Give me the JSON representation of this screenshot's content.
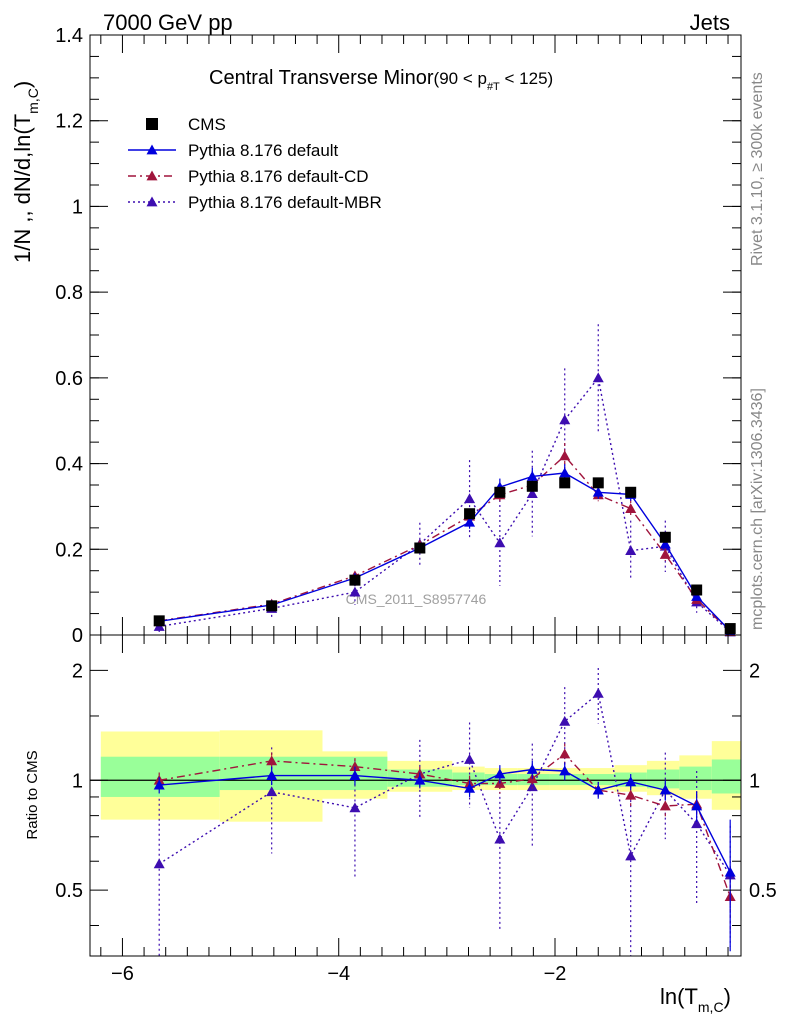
{
  "header": {
    "energy_label": "7000 GeV pp",
    "process_label": "Jets"
  },
  "side_labels": {
    "rivet": "Rivet 3.1.10, ≥ 300k events",
    "mcplots": "mcplots.cern.ch [arXiv:1306.3436]"
  },
  "watermark": "CMS_2011_S8957746",
  "colors": {
    "cms": "#000000",
    "default": "#0000dd",
    "cd": "#a0143c",
    "mbr": "#3d0db0",
    "band_inner": "#99ff99",
    "band_outer": "#ffff99"
  },
  "chart_data": [
    {
      "panel": "main",
      "type": "scatter",
      "title": "Central Transverse Minor",
      "title_suffix": "(90 < p",
      "title_suffix_sub": "#T",
      "title_suffix_end": " < 125)",
      "ylabel": "1/N ,, dN/d,ln(T",
      "ylabel_sub": "m,C",
      "ylabel_end": ")",
      "xlim": [
        -6.3,
        -0.28
      ],
      "ylim": [
        0,
        1.4
      ],
      "log_scale": false,
      "grid": false,
      "legend_position": "top-left",
      "y_ticks": [
        "0",
        "0.2",
        "0.4",
        "0.6",
        "0.8",
        "1",
        "1.2",
        "1.4"
      ],
      "series": [
        {
          "name": "CMS",
          "key": "cms",
          "marker": "square",
          "line": "none",
          "x": [
            -5.66,
            -4.62,
            -3.85,
            -3.25,
            -2.79,
            -2.51,
            -2.21,
            -1.91,
            -1.6,
            -1.3,
            -0.98,
            -0.69,
            -0.38
          ],
          "y": [
            0.033,
            0.068,
            0.128,
            0.203,
            0.283,
            0.333,
            0.347,
            0.355,
            0.355,
            0.333,
            0.228,
            0.105,
            0.015
          ],
          "yerr": [
            0,
            0,
            0,
            0,
            0,
            0,
            0,
            0,
            0,
            0,
            0,
            0,
            0
          ]
        },
        {
          "name": "Pythia 8.176 default",
          "key": "default",
          "marker": "triangle",
          "line": "solid",
          "x": [
            -5.66,
            -4.62,
            -3.85,
            -3.25,
            -2.79,
            -2.51,
            -2.21,
            -1.91,
            -1.6,
            -1.3,
            -0.98,
            -0.69,
            -0.38
          ],
          "y": [
            0.032,
            0.07,
            0.133,
            0.203,
            0.263,
            0.345,
            0.37,
            0.378,
            0.333,
            0.328,
            0.212,
            0.09,
            0.009
          ],
          "yerr": [
            0.005,
            0.006,
            0.008,
            0.01,
            0.015,
            0.02,
            0.02,
            0.02,
            0.015,
            0.015,
            0.01,
            0.008,
            0.003
          ]
        },
        {
          "name": "Pythia 8.176 default-CD",
          "key": "cd",
          "marker": "triangle",
          "line": "dashdot",
          "x": [
            -5.66,
            -4.62,
            -3.85,
            -3.25,
            -2.79,
            -2.51,
            -2.21,
            -1.91,
            -1.6,
            -1.3,
            -0.98,
            -0.69,
            -0.38
          ],
          "y": [
            0.033,
            0.072,
            0.138,
            0.21,
            0.277,
            0.327,
            0.35,
            0.418,
            0.327,
            0.295,
            0.188,
            0.083,
            0.008
          ],
          "yerr": [
            0.004,
            0.006,
            0.008,
            0.01,
            0.015,
            0.02,
            0.02,
            0.03,
            0.015,
            0.02,
            0.015,
            0.008,
            0.003
          ]
        },
        {
          "name": "Pythia 8.176 default-MBR",
          "key": "mbr",
          "marker": "triangle",
          "line": "dotted",
          "x": [
            -5.66,
            -4.62,
            -3.85,
            -3.25,
            -2.79,
            -2.51,
            -2.21,
            -1.91,
            -1.6,
            -1.3,
            -0.98,
            -0.69,
            -0.38
          ],
          "y": [
            0.02,
            0.062,
            0.1,
            0.212,
            0.318,
            0.215,
            0.33,
            0.502,
            0.6,
            0.197,
            0.207,
            0.077,
            0.007
          ],
          "yerr": [
            0.015,
            0.02,
            0.03,
            0.05,
            0.09,
            0.1,
            0.1,
            0.12,
            0.125,
            0.07,
            0.06,
            0.025,
            0.003
          ]
        }
      ]
    },
    {
      "panel": "ratio",
      "type": "scatter",
      "ylabel": "Ratio to CMS",
      "xlabel": "ln(T",
      "xlabel_sub": "m,C",
      "xlabel_end": ")",
      "xlim": [
        -6.3,
        -0.28
      ],
      "ylim": [
        0.33,
        2.5
      ],
      "log_scale": true,
      "reference_line": 1,
      "y_ticks": [
        "0.5",
        "1",
        "2"
      ],
      "x_ticks": [
        "−6",
        "−4",
        "−2"
      ],
      "bands": {
        "edges": [
          -6.2,
          -5.1,
          -4.15,
          -3.55,
          -2.95,
          -2.65,
          -2.35,
          -2.05,
          -1.75,
          -1.45,
          -1.15,
          -0.85,
          -0.55,
          -0.28
        ],
        "inner_low": [
          0.9,
          0.94,
          0.94,
          0.96,
          0.97,
          0.97,
          0.97,
          0.97,
          0.97,
          0.96,
          0.95,
          0.94,
          0.92
        ],
        "inner_high": [
          1.16,
          1.16,
          1.16,
          1.07,
          1.05,
          1.04,
          1.04,
          1.04,
          1.04,
          1.05,
          1.07,
          1.09,
          1.14
        ],
        "outer_low": [
          0.78,
          0.77,
          0.89,
          0.93,
          0.94,
          0.94,
          0.94,
          0.94,
          0.94,
          0.93,
          0.91,
          0.89,
          0.83
        ],
        "outer_high": [
          1.36,
          1.37,
          1.2,
          1.13,
          1.09,
          1.08,
          1.08,
          1.08,
          1.08,
          1.1,
          1.13,
          1.17,
          1.28
        ]
      },
      "series": [
        {
          "name": "Pythia 8.176 default",
          "key": "default",
          "marker": "triangle",
          "line": "solid",
          "x": [
            -5.66,
            -4.62,
            -3.85,
            -3.25,
            -2.79,
            -2.51,
            -2.21,
            -1.91,
            -1.6,
            -1.3,
            -0.98,
            -0.69,
            -0.38
          ],
          "y": [
            0.97,
            1.03,
            1.03,
            1.0,
            0.95,
            1.04,
            1.07,
            1.06,
            0.94,
            0.99,
            0.94,
            0.85,
            0.56
          ],
          "yerr": [
            0.05,
            0.06,
            0.06,
            0.05,
            0.05,
            0.06,
            0.06,
            0.06,
            0.05,
            0.05,
            0.06,
            0.08,
            0.22
          ]
        },
        {
          "name": "Pythia 8.176 default-CD",
          "key": "cd",
          "marker": "triangle",
          "line": "dashdot",
          "x": [
            -5.66,
            -4.62,
            -3.85,
            -3.25,
            -2.79,
            -2.51,
            -2.21,
            -1.91,
            -1.6,
            -1.3,
            -0.98,
            -0.69,
            -0.38
          ],
          "y": [
            1.0,
            1.13,
            1.09,
            1.04,
            0.98,
            0.98,
            1.01,
            1.18,
            0.94,
            0.91,
            0.85,
            0.86,
            0.48
          ],
          "yerr": [
            0.05,
            0.06,
            0.06,
            0.05,
            0.05,
            0.06,
            0.06,
            0.08,
            0.05,
            0.06,
            0.06,
            0.06,
            0.1
          ]
        },
        {
          "name": "Pythia 8.176 default-MBR",
          "key": "mbr",
          "marker": "triangle",
          "line": "dotted",
          "x": [
            -5.66,
            -4.62,
            -3.85,
            -3.25,
            -2.79,
            -2.51,
            -2.21,
            -1.91,
            -1.6,
            -1.3,
            -0.98,
            -0.69,
            -0.38
          ],
          "y": [
            0.59,
            0.93,
            0.84,
            1.04,
            1.14,
            0.69,
            0.96,
            1.45,
            1.73,
            0.62,
            0.94,
            0.76,
            0.55
          ],
          "yerr": [
            0.3,
            0.3,
            0.3,
            0.25,
            0.3,
            0.3,
            0.3,
            0.35,
            0.3,
            0.35,
            0.25,
            0.3,
            0.2
          ]
        }
      ]
    }
  ]
}
